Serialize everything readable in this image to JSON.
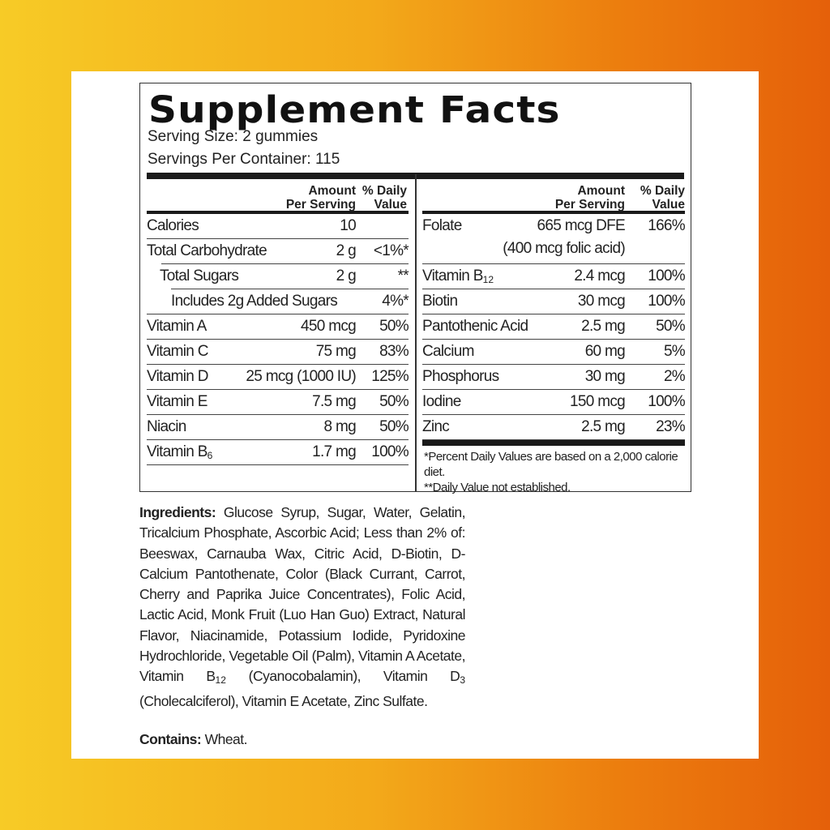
{
  "title": "Supplement Facts",
  "serving_size": "Serving Size:  2 gummies",
  "servings_per_container": "Servings Per Container: 115",
  "header": {
    "amount_line1": "Amount",
    "amount_line2": "Per Serving",
    "dv_line1": "% Daily",
    "dv_line2": "Value"
  },
  "left_rows": [
    {
      "name": "Calories",
      "amount": "10",
      "dv": ""
    },
    {
      "name": "Total Carbohydrate",
      "amount": "2 g",
      "dv": "<1%*"
    },
    {
      "name": "Total Sugars",
      "amount": "2 g",
      "dv": "**"
    },
    {
      "name": "Includes 2g Added Sugars",
      "amount": "",
      "dv": "4%*"
    },
    {
      "name": "Vitamin A",
      "amount": "450 mcg",
      "dv": "50%"
    },
    {
      "name": "Vitamin C",
      "amount": "75 mg",
      "dv": "83%"
    },
    {
      "name": "Vitamin D",
      "amount": "25 mcg (1000 IU)",
      "dv": "125%"
    },
    {
      "name": "Vitamin E",
      "amount": "7.5 mg",
      "dv": "50%"
    },
    {
      "name": "Niacin",
      "amount": "8 mg",
      "dv": "50%"
    },
    {
      "name": "Vitamin B",
      "sub": "6",
      "amount": "1.7 mg",
      "dv": "100%"
    }
  ],
  "right_rows": [
    {
      "name": "Folate",
      "amount": "665 mcg DFE",
      "amount2": "(400 mcg folic acid)",
      "dv": "166%"
    },
    {
      "name": "Vitamin B",
      "sub": "12",
      "amount": "2.4 mcg",
      "dv": "100%"
    },
    {
      "name": "Biotin",
      "amount": "30 mcg",
      "dv": "100%"
    },
    {
      "name": "Pantothenic Acid",
      "amount": "2.5 mg",
      "dv": "50%"
    },
    {
      "name": "Calcium",
      "amount": "60 mg",
      "dv": "5%"
    },
    {
      "name": "Phosphorus",
      "amount": "30 mg",
      "dv": "2%"
    },
    {
      "name": "Iodine",
      "amount": "150 mcg",
      "dv": "100%"
    },
    {
      "name": "Zinc",
      "amount": "2.5 mg",
      "dv": "23%"
    }
  ],
  "footnotes": [
    "*Percent Daily Values are based on a 2,000 calorie diet.",
    "**Daily Value not established."
  ],
  "ingredients": {
    "label": "Ingredients:",
    "text1": " Glucose Syrup, Sugar, Water, Gelatin, Tricalcium Phosphate, Ascorbic Acid; Less than 2% of: Beeswax, Carnauba Wax, Citric Acid, D-Biotin, D-Calcium Pantothenate, Color (Black Currant, Carrot, Cherry and Paprika Juice Concentrates), Folic Acid, Lactic Acid, Monk Fruit (Luo Han Guo) Extract, Natural Flavor, Niacinamide, Potassium Iodide, Pyridoxine Hydrochloride, Vegetable Oil (Palm), Vitamin A Acetate, Vitamin B",
    "sub1": "12",
    "text2": " (Cyanocobalamin), Vitamin D",
    "sub2": "3",
    "text3": " (Cholecalciferol), Vitamin E Acetate, Zinc Sulfate."
  },
  "contains": {
    "label": "Contains:",
    "text": " Wheat."
  }
}
